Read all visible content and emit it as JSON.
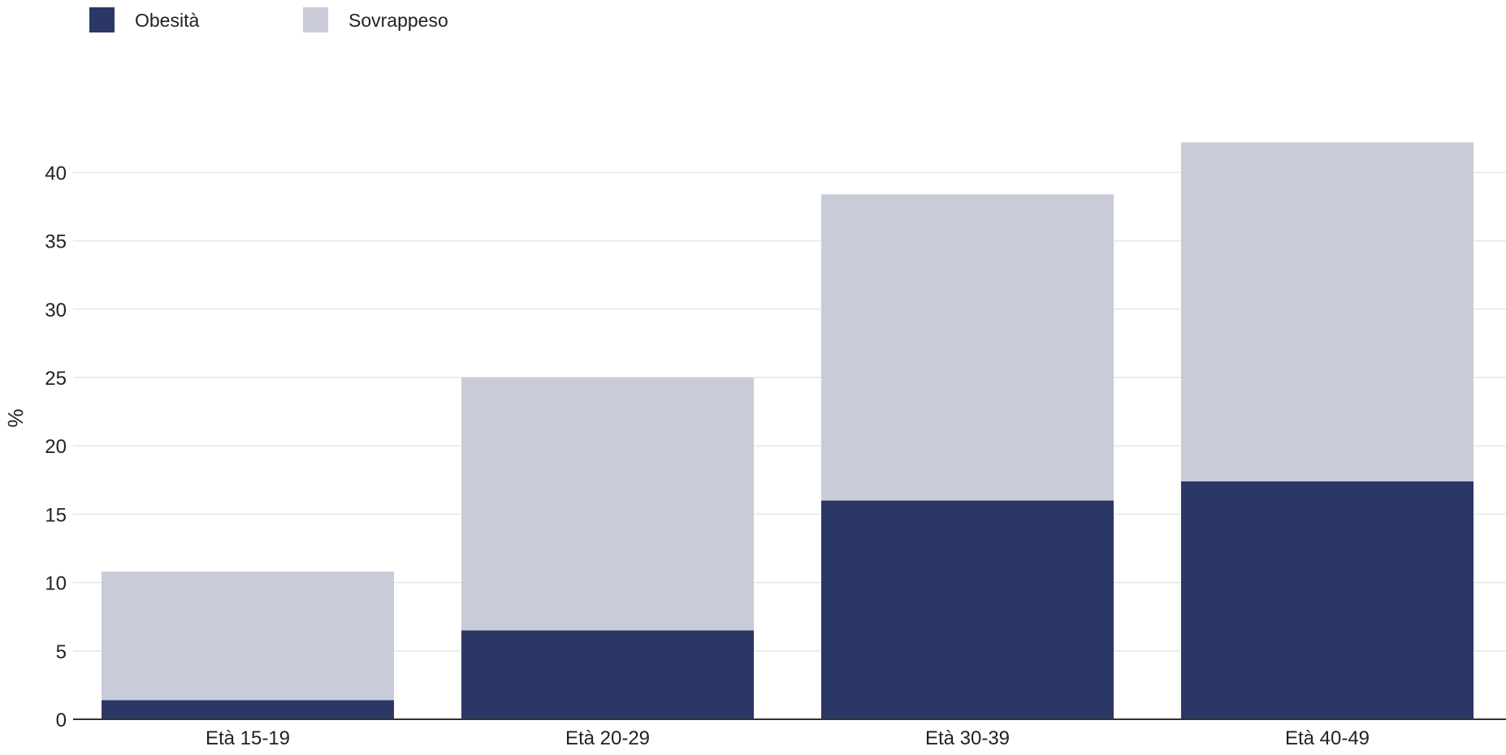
{
  "chart_data": {
    "type": "bar",
    "stacked": true,
    "categories": [
      "Età 15-19",
      "Età 20-29",
      "Età 30-39",
      "Età 40-49"
    ],
    "series": [
      {
        "name": "Obesità",
        "color": "#2b3764",
        "values": [
          1.4,
          6.5,
          16.0,
          17.4
        ]
      },
      {
        "name": "Sovrappeso",
        "color": "#c9ccd8",
        "values": [
          9.4,
          18.5,
          22.4,
          24.8
        ]
      }
    ],
    "ylabel": "%",
    "ylim": [
      0,
      45
    ],
    "yticks": [
      0,
      5,
      10,
      15,
      20,
      25,
      30,
      35,
      40
    ],
    "grid": true,
    "legend_position": "top-left"
  }
}
